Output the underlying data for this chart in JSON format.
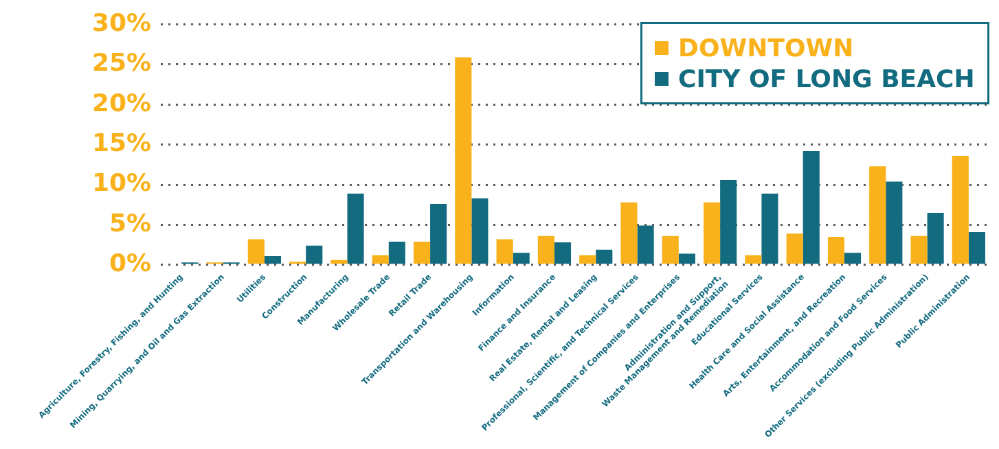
{
  "chart_data": {
    "type": "bar",
    "categories": [
      "Agriculture, Forestry, Fishing, and Hunting",
      "Mining, Quarrying, and Oil and Gas Extraction",
      "Utilities",
      "Construction",
      "Manufacturing",
      "Wholesale Trade",
      "Retail Trade",
      "Transportation and Warehousing",
      "Information",
      "Finance and Insurance",
      "Real Estate, Rental and Leasing",
      "Professional, Scientific, and Technical Services",
      "Management of Companies and Enterprises",
      "Administration and Support, Waste Management and Remediation",
      "Educational Services",
      "Health Care and Social Assistance",
      "Arts, Entertainment, and Recreation",
      "Accommodation and Food Services",
      "Other Services (excluding Public Administration)",
      "Public Administration"
    ],
    "series": [
      {
        "name": "DOWNTOWN",
        "color": "#f9b21b",
        "values": [
          0,
          0.3,
          3.2,
          0.4,
          0.6,
          1.2,
          2.9,
          25.9,
          3.2,
          3.6,
          1.2,
          7.8,
          3.6,
          7.8,
          1.2,
          3.9,
          3.5,
          12.3,
          3.6,
          13.6
        ]
      },
      {
        "name": "CITY OF LONG BEACH",
        "color": "#136b80",
        "values": [
          0.3,
          0.3,
          1.1,
          2.4,
          8.9,
          2.9,
          7.6,
          8.3,
          1.5,
          2.8,
          1.9,
          4.9,
          1.4,
          10.6,
          8.9,
          14.2,
          1.5,
          10.4,
          6.5,
          4.1
        ]
      }
    ],
    "ylim": [
      0,
      30
    ],
    "yticks": [
      {
        "value": 0,
        "label": "0%"
      },
      {
        "value": 5,
        "label": "5%"
      },
      {
        "value": 10,
        "label": "10%"
      },
      {
        "value": 15,
        "label": "15%"
      },
      {
        "value": 20,
        "label": "20%"
      },
      {
        "value": 25,
        "label": "25%"
      },
      {
        "value": 30,
        "label": "30%"
      }
    ],
    "grid": "y",
    "legend": "top right"
  }
}
